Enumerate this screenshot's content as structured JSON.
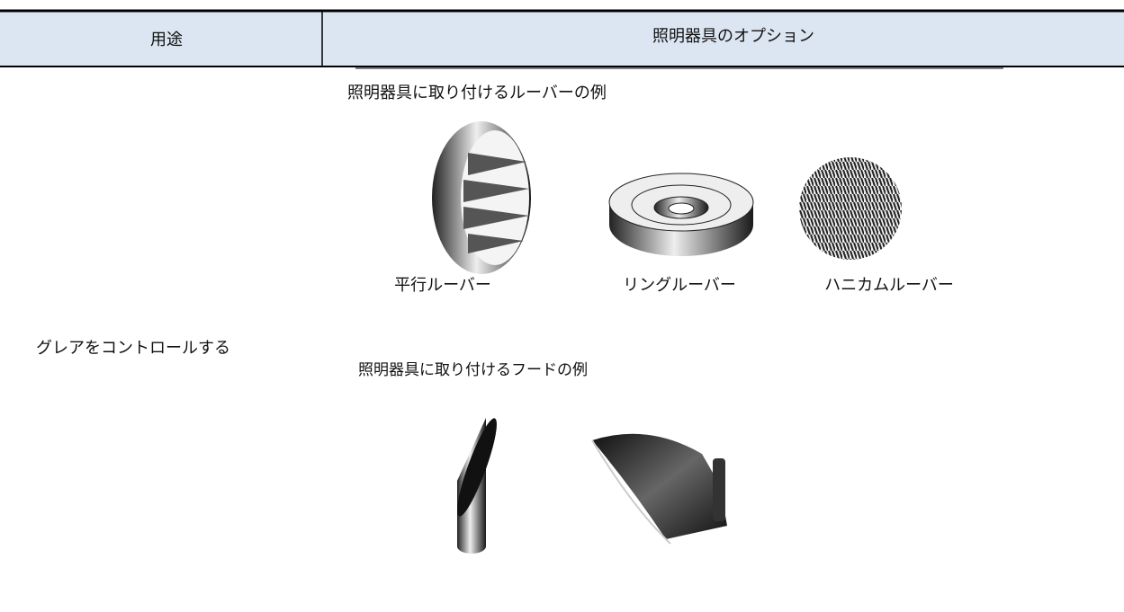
{
  "table": {
    "headers": [
      "用途",
      "照明器具のオプション"
    ],
    "rows": [
      {
        "use": "グレアをコントロールする",
        "louver_caption": "照明器具に取り付けるルーバーの例",
        "louvers": [
          "平行ルーバー",
          "リングルーバー",
          "ハニカムルーバー"
        ],
        "hood_caption": "照明器具に取り付けるフードの例"
      }
    ]
  }
}
